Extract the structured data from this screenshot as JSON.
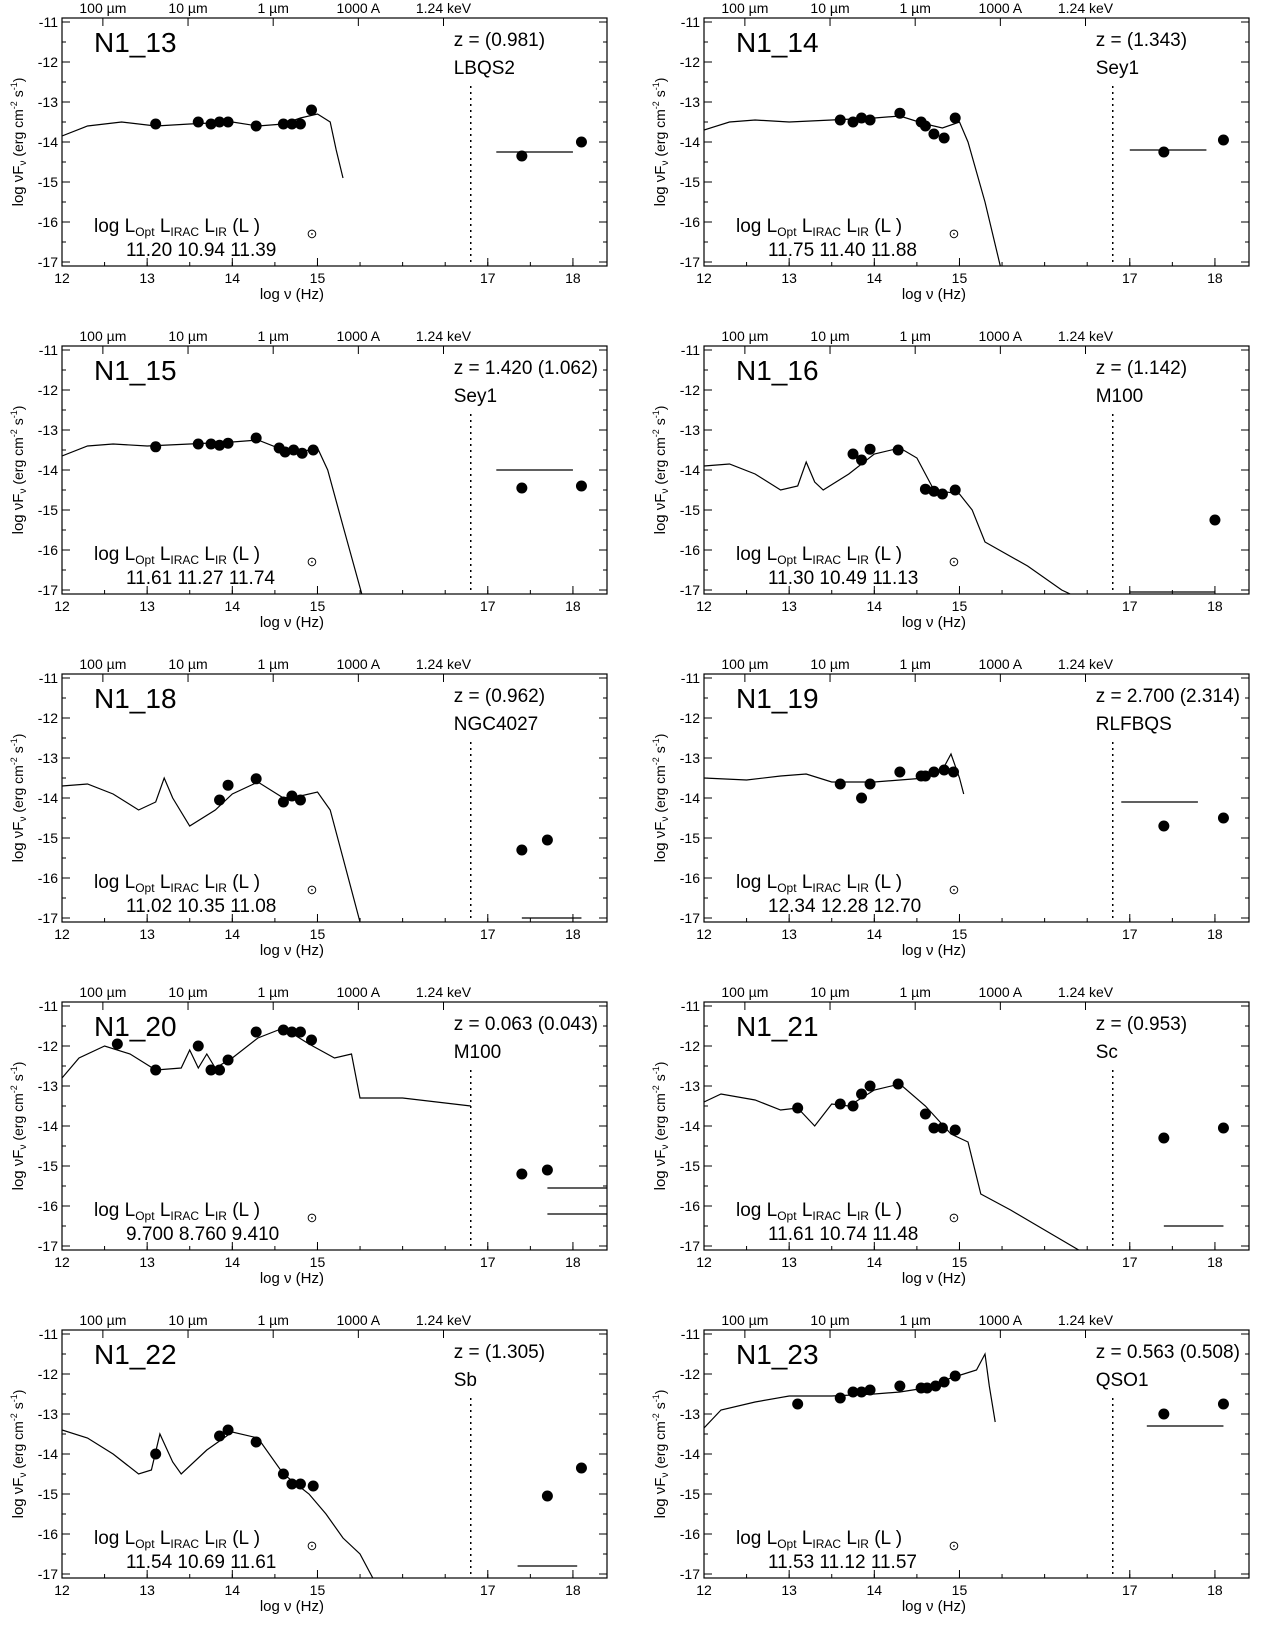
{
  "labels": {
    "top_wavelengths": [
      "100 µm",
      "10 µm",
      "1 µm",
      "1000 A",
      "1.24 keV"
    ],
    "xlabel": "log ν (Hz)",
    "ylabel": "log νF",
    "ylabel_sub": "ν",
    "ylabel_units": " (erg cm",
    "ylabel_units2": " s",
    "ylabel_units3": ")",
    "lum_prefix": "log",
    "lum_opt": "L",
    "lum_opt_sub": "Opt",
    "lum_irac": "L",
    "lum_irac_sub": "IRAC",
    "lum_ir": "L",
    "lum_ir_sub": "IR",
    "lum_unit": "(L",
    "lum_unit_close": ")",
    "sun_symbol": "⊙"
  },
  "axes": {
    "xlim": [
      12,
      18.4
    ],
    "ylim": [
      -17.1,
      -10.9
    ],
    "xticks": [
      12,
      13,
      14,
      15,
      17,
      18
    ],
    "yticks": [
      -11,
      -12,
      -13,
      -14,
      -15,
      -16,
      -17
    ],
    "dotted_line_x": 16.8,
    "top_ticks_x": [
      12.48,
      13.48,
      14.48,
      15.48,
      16.48
    ]
  },
  "chart_data": [
    {
      "type": "scatter",
      "title": "N1_13",
      "z": "z = (0.981)",
      "template": "LBQS2",
      "lum": [
        "11.20",
        "10.94",
        "11.39"
      ],
      "x": [
        13.1,
        13.6,
        13.75,
        13.85,
        13.95,
        14.28,
        14.6,
        14.7,
        14.8,
        14.93,
        17.4,
        18.1
      ],
      "y": [
        -13.55,
        -13.5,
        -13.55,
        -13.5,
        -13.5,
        -13.6,
        -13.55,
        -13.55,
        -13.55,
        -13.2,
        -14.35,
        -14.0
      ],
      "model": [
        [
          12,
          -13.85
        ],
        [
          12.3,
          -13.6
        ],
        [
          12.7,
          -13.5
        ],
        [
          13.1,
          -13.6
        ],
        [
          13.5,
          -13.55
        ],
        [
          14.0,
          -13.5
        ],
        [
          14.3,
          -13.6
        ],
        [
          14.6,
          -13.55
        ],
        [
          14.8,
          -13.4
        ],
        [
          15.0,
          -13.3
        ],
        [
          15.15,
          -13.5
        ],
        [
          15.22,
          -14.2
        ],
        [
          15.3,
          -14.9
        ]
      ],
      "xray_lines": [
        [
          17.1,
          18.0,
          -14.25
        ]
      ]
    },
    {
      "type": "scatter",
      "title": "N1_14",
      "z": "z = (1.343)",
      "template": "Sey1",
      "lum": [
        "11.75",
        "11.40",
        "11.88"
      ],
      "x": [
        13.6,
        13.75,
        13.85,
        13.95,
        14.3,
        14.55,
        14.6,
        14.7,
        14.82,
        14.95,
        17.4,
        18.1
      ],
      "y": [
        -13.45,
        -13.5,
        -13.4,
        -13.45,
        -13.28,
        -13.5,
        -13.6,
        -13.8,
        -13.9,
        -13.4,
        -14.25,
        -13.95
      ],
      "model": [
        [
          12,
          -13.7
        ],
        [
          12.3,
          -13.5
        ],
        [
          12.6,
          -13.45
        ],
        [
          13.0,
          -13.5
        ],
        [
          13.5,
          -13.45
        ],
        [
          14.0,
          -13.4
        ],
        [
          14.3,
          -13.35
        ],
        [
          14.6,
          -13.55
        ],
        [
          14.8,
          -13.65
        ],
        [
          15.0,
          -13.5
        ],
        [
          15.1,
          -14.0
        ],
        [
          15.3,
          -15.5
        ],
        [
          15.48,
          -17.1
        ]
      ],
      "xray_lines": [
        [
          17.0,
          17.9,
          -14.2
        ]
      ]
    },
    {
      "type": "scatter",
      "title": "N1_15",
      "z": "z = 1.420 (1.062)",
      "template": "Sey1",
      "lum": [
        "11.61",
        "11.27",
        "11.74"
      ],
      "x": [
        13.1,
        13.6,
        13.75,
        13.85,
        13.95,
        14.28,
        14.55,
        14.62,
        14.72,
        14.82,
        14.95,
        17.4,
        18.1
      ],
      "y": [
        -13.42,
        -13.35,
        -13.35,
        -13.38,
        -13.33,
        -13.2,
        -13.45,
        -13.55,
        -13.5,
        -13.58,
        -13.5,
        -14.45,
        -14.4
      ],
      "model": [
        [
          12,
          -13.65
        ],
        [
          12.3,
          -13.4
        ],
        [
          12.6,
          -13.35
        ],
        [
          13.0,
          -13.4
        ],
        [
          13.5,
          -13.35
        ],
        [
          14.0,
          -13.3
        ],
        [
          14.3,
          -13.25
        ],
        [
          14.6,
          -13.5
        ],
        [
          14.8,
          -13.55
        ],
        [
          15.0,
          -13.45
        ],
        [
          15.12,
          -14.0
        ],
        [
          15.3,
          -15.4
        ],
        [
          15.52,
          -17.1
        ]
      ],
      "xray_lines": [
        [
          17.1,
          18.0,
          -14.0
        ]
      ]
    },
    {
      "type": "scatter",
      "title": "N1_16",
      "z": "z = (1.142)",
      "template": "M100",
      "lum": [
        "11.30",
        "10.49",
        "11.13"
      ],
      "x": [
        13.75,
        13.85,
        13.95,
        14.28,
        14.6,
        14.7,
        14.8,
        14.95,
        18.0
      ],
      "y": [
        -13.6,
        -13.75,
        -13.48,
        -13.5,
        -14.48,
        -14.53,
        -14.6,
        -14.5,
        -15.25
      ],
      "model": [
        [
          12,
          -13.9
        ],
        [
          12.3,
          -13.85
        ],
        [
          12.6,
          -14.1
        ],
        [
          12.9,
          -14.5
        ],
        [
          13.1,
          -14.4
        ],
        [
          13.2,
          -13.8
        ],
        [
          13.3,
          -14.3
        ],
        [
          13.4,
          -14.5
        ],
        [
          13.7,
          -14.1
        ],
        [
          14.0,
          -13.6
        ],
        [
          14.3,
          -13.45
        ],
        [
          14.5,
          -13.7
        ],
        [
          14.7,
          -14.5
        ],
        [
          15.0,
          -14.6
        ],
        [
          15.15,
          -15.0
        ],
        [
          15.3,
          -15.8
        ],
        [
          15.8,
          -16.4
        ],
        [
          16.2,
          -17.0
        ],
        [
          16.3,
          -17.1
        ]
      ],
      "xray_lines": [
        [
          17.0,
          18.0,
          -17.05
        ]
      ]
    },
    {
      "type": "scatter",
      "title": "N1_18",
      "z": "z = (0.962)",
      "template": "NGC4027",
      "lum": [
        "11.02",
        "10.35",
        "11.08"
      ],
      "x": [
        13.85,
        13.95,
        14.28,
        14.6,
        14.7,
        14.8,
        17.4,
        17.7
      ],
      "y": [
        -14.05,
        -13.68,
        -13.52,
        -14.1,
        -13.95,
        -14.05,
        -15.3,
        -15.05
      ],
      "model": [
        [
          12,
          -13.7
        ],
        [
          12.3,
          -13.65
        ],
        [
          12.6,
          -13.9
        ],
        [
          12.9,
          -14.3
        ],
        [
          13.1,
          -14.1
        ],
        [
          13.2,
          -13.5
        ],
        [
          13.3,
          -14.0
        ],
        [
          13.5,
          -14.7
        ],
        [
          13.8,
          -14.3
        ],
        [
          14.0,
          -13.9
        ],
        [
          14.3,
          -13.6
        ],
        [
          14.6,
          -14.0
        ],
        [
          14.8,
          -13.95
        ],
        [
          15.0,
          -13.85
        ],
        [
          15.15,
          -14.3
        ],
        [
          15.3,
          -15.5
        ],
        [
          15.5,
          -17.1
        ]
      ],
      "xray_lines": [
        [
          17.4,
          18.1,
          -17.0
        ]
      ]
    },
    {
      "type": "scatter",
      "title": "N1_19",
      "z": "z = 2.700 (2.314)",
      "template": "RLFBQS",
      "lum": [
        "12.34",
        "12.28",
        "12.70"
      ],
      "x": [
        13.6,
        13.85,
        13.95,
        14.3,
        14.55,
        14.6,
        14.7,
        14.82,
        14.93,
        17.4,
        18.1
      ],
      "y": [
        -13.65,
        -14.0,
        -13.65,
        -13.35,
        -13.45,
        -13.45,
        -13.35,
        -13.3,
        -13.35,
        -14.7,
        -14.5
      ],
      "model": [
        [
          12,
          -13.5
        ],
        [
          12.5,
          -13.55
        ],
        [
          12.9,
          -13.45
        ],
        [
          13.2,
          -13.4
        ],
        [
          13.5,
          -13.6
        ],
        [
          14.0,
          -13.6
        ],
        [
          14.3,
          -13.55
        ],
        [
          14.6,
          -13.5
        ],
        [
          14.8,
          -13.3
        ],
        [
          14.9,
          -12.9
        ],
        [
          15.0,
          -13.5
        ],
        [
          15.05,
          -13.9
        ]
      ],
      "xray_lines": [
        [
          16.9,
          17.8,
          -14.1
        ]
      ]
    },
    {
      "type": "scatter",
      "title": "N1_20",
      "z": "z = 0.063 (0.043)",
      "template": "M100",
      "lum": [
        "9.700",
        "8.760",
        "9.410"
      ],
      "x": [
        12.65,
        13.1,
        13.6,
        13.75,
        13.85,
        13.95,
        14.28,
        14.6,
        14.7,
        14.8,
        14.93,
        17.4,
        17.7
      ],
      "y": [
        -11.95,
        -12.6,
        -12.0,
        -12.6,
        -12.6,
        -12.35,
        -11.65,
        -11.6,
        -11.65,
        -11.65,
        -11.85,
        -15.2,
        -15.1
      ],
      "model": [
        [
          12,
          -12.8
        ],
        [
          12.2,
          -12.3
        ],
        [
          12.5,
          -12.0
        ],
        [
          12.8,
          -12.2
        ],
        [
          13.1,
          -12.6
        ],
        [
          13.4,
          -12.55
        ],
        [
          13.5,
          -12.1
        ],
        [
          13.6,
          -12.55
        ],
        [
          13.7,
          -12.2
        ],
        [
          13.8,
          -12.55
        ],
        [
          14.0,
          -12.3
        ],
        [
          14.3,
          -11.8
        ],
        [
          14.6,
          -11.55
        ],
        [
          14.9,
          -11.95
        ],
        [
          15.2,
          -12.3
        ],
        [
          15.4,
          -12.2
        ],
        [
          15.5,
          -13.3
        ],
        [
          16.0,
          -13.3
        ],
        [
          16.8,
          -13.5
        ]
      ],
      "xray_lines": [
        [
          17.7,
          18.4,
          -15.55
        ],
        [
          17.7,
          18.4,
          -16.2
        ]
      ]
    },
    {
      "type": "scatter",
      "title": "N1_21",
      "z": "z = (0.953)",
      "template": "Sc",
      "lum": [
        "11.61",
        "10.74",
        "11.48"
      ],
      "x": [
        13.1,
        13.6,
        13.75,
        13.85,
        13.95,
        14.28,
        14.6,
        14.7,
        14.8,
        14.95,
        17.4,
        18.1
      ],
      "y": [
        -13.55,
        -13.45,
        -13.5,
        -13.2,
        -13.0,
        -12.95,
        -13.7,
        -14.05,
        -14.05,
        -14.1,
        -14.3,
        -14.05
      ],
      "model": [
        [
          12,
          -13.4
        ],
        [
          12.2,
          -13.2
        ],
        [
          12.6,
          -13.35
        ],
        [
          12.9,
          -13.6
        ],
        [
          13.1,
          -13.55
        ],
        [
          13.3,
          -14.0
        ],
        [
          13.5,
          -13.45
        ],
        [
          13.7,
          -13.5
        ],
        [
          14.0,
          -13.1
        ],
        [
          14.3,
          -12.95
        ],
        [
          14.6,
          -13.5
        ],
        [
          14.9,
          -14.2
        ],
        [
          15.1,
          -14.4
        ],
        [
          15.25,
          -15.7
        ],
        [
          15.6,
          -16.1
        ],
        [
          16.0,
          -16.6
        ],
        [
          16.4,
          -17.1
        ]
      ],
      "xray_lines": [
        [
          17.4,
          18.1,
          -16.5
        ]
      ]
    },
    {
      "type": "scatter",
      "title": "N1_22",
      "z": "z = (1.305)",
      "template": "Sb",
      "lum": [
        "11.54",
        "10.69",
        "11.61"
      ],
      "x": [
        13.1,
        13.85,
        13.95,
        14.28,
        14.6,
        14.7,
        14.8,
        14.95,
        17.7,
        18.1
      ],
      "y": [
        -14.0,
        -13.55,
        -13.4,
        -13.7,
        -14.5,
        -14.75,
        -14.75,
        -14.8,
        -15.05,
        -14.35
      ],
      "model": [
        [
          12,
          -13.4
        ],
        [
          12.3,
          -13.6
        ],
        [
          12.6,
          -14.0
        ],
        [
          12.9,
          -14.5
        ],
        [
          13.05,
          -14.4
        ],
        [
          13.15,
          -13.5
        ],
        [
          13.3,
          -14.2
        ],
        [
          13.4,
          -14.5
        ],
        [
          13.7,
          -13.9
        ],
        [
          14.0,
          -13.45
        ],
        [
          14.3,
          -13.6
        ],
        [
          14.6,
          -14.5
        ],
        [
          14.9,
          -15.0
        ],
        [
          15.1,
          -15.5
        ],
        [
          15.3,
          -16.1
        ],
        [
          15.5,
          -16.5
        ],
        [
          15.65,
          -17.1
        ]
      ],
      "xray_lines": [
        [
          17.35,
          18.05,
          -16.8
        ]
      ]
    },
    {
      "type": "scatter",
      "title": "N1_23",
      "z": "z = 0.563 (0.508)",
      "template": "QSO1",
      "lum": [
        "11.53",
        "11.12",
        "11.57"
      ],
      "x": [
        13.1,
        13.6,
        13.75,
        13.85,
        13.95,
        14.3,
        14.55,
        14.62,
        14.72,
        14.82,
        14.95,
        17.4,
        18.1
      ],
      "y": [
        -12.75,
        -12.6,
        -12.45,
        -12.45,
        -12.4,
        -12.3,
        -12.35,
        -12.35,
        -12.3,
        -12.2,
        -12.05,
        -13.0,
        -12.75
      ],
      "model": [
        [
          12,
          -13.35
        ],
        [
          12.2,
          -12.9
        ],
        [
          12.6,
          -12.7
        ],
        [
          13.0,
          -12.55
        ],
        [
          13.5,
          -12.55
        ],
        [
          14.0,
          -12.5
        ],
        [
          14.3,
          -12.45
        ],
        [
          14.6,
          -12.35
        ],
        [
          14.9,
          -12.1
        ],
        [
          15.2,
          -11.9
        ],
        [
          15.3,
          -11.5
        ],
        [
          15.35,
          -12.3
        ],
        [
          15.42,
          -13.2
        ]
      ],
      "xray_lines": [
        [
          17.2,
          18.1,
          -13.3
        ]
      ]
    }
  ]
}
